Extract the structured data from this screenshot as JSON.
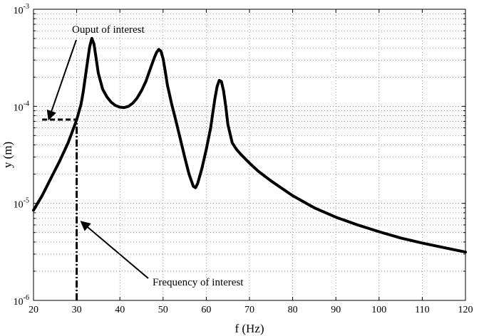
{
  "chart_data": {
    "type": "line",
    "title": "",
    "xlabel": "f (Hz)",
    "ylabel": "y (m)",
    "xlim": [
      20,
      120
    ],
    "ylim": [
      1e-06,
      0.001
    ],
    "yscale": "log",
    "grid": true,
    "x_ticks": [
      20,
      30,
      40,
      50,
      60,
      70,
      80,
      90,
      100,
      110,
      120
    ],
    "x_tick_labels": [
      "20",
      "30",
      "40",
      "50",
      "60",
      "70",
      "80",
      "90",
      "100",
      "110",
      "120"
    ],
    "y_ticks": [
      {
        "value": 1e-06,
        "base": "10",
        "exp": "-6"
      },
      {
        "value": 1e-05,
        "base": "10",
        "exp": "-5"
      },
      {
        "value": 0.0001,
        "base": "10",
        "exp": "-4"
      },
      {
        "value": 0.001,
        "base": "10",
        "exp": "-3"
      }
    ],
    "series": [
      {
        "x": [
          20,
          22,
          24,
          26,
          28,
          29,
          30,
          31,
          31.5,
          32,
          32.5,
          33,
          33.5,
          34,
          34.5,
          35,
          36,
          37,
          38,
          39,
          40,
          41,
          42,
          43,
          44,
          45,
          46,
          47,
          48,
          48.5,
          49,
          49.5,
          50,
          50.5,
          51,
          52,
          53,
          54,
          55,
          56,
          57,
          57.5,
          58,
          59,
          60,
          61,
          61.5,
          62,
          62.5,
          63,
          63.5,
          64,
          64.5,
          65,
          66,
          67,
          68,
          70,
          72,
          75,
          80,
          85,
          90,
          95,
          100,
          105,
          110,
          115,
          120
        ],
        "y": [
          8.5e-06,
          1.2e-05,
          1.8e-05,
          2.7e-05,
          4.2e-05,
          5.5e-05,
          7.3e-05,
          0.000105,
          0.00014,
          0.0002,
          0.00029,
          0.00041,
          0.0005,
          0.00044,
          0.00031,
          0.00022,
          0.00015,
          0.000125,
          0.00011,
          0.000102,
          9.8e-05,
          9.7e-05,
          0.0001,
          0.000108,
          0.000122,
          0.000145,
          0.00018,
          0.00024,
          0.00032,
          0.00036,
          0.000385,
          0.00037,
          0.00031,
          0.00023,
          0.000165,
          0.000105,
          7e-05,
          4.6e-05,
          3e-05,
          2e-05,
          1.5e-05,
          1.45e-05,
          1.6e-05,
          2.3e-05,
          3.6e-05,
          6e-05,
          8.5e-05,
          0.00012,
          0.00016,
          0.000185,
          0.00018,
          0.000145,
          0.0001,
          6.5e-05,
          4.2e-05,
          3.6e-05,
          3.2e-05,
          2.6e-05,
          2.15e-05,
          1.7e-05,
          1.2e-05,
          9e-06,
          7.2e-06,
          6e-06,
          5.1e-06,
          4.4e-06,
          3.9e-06,
          3.5e-06,
          3.15e-06
        ]
      }
    ],
    "markers": {
      "output_of_interest": {
        "y": 7.3e-05,
        "x_from": 22,
        "x_to": 30
      },
      "frequency_of_interest": {
        "x": 30,
        "y_from": 1e-06,
        "y_to": 7.3e-05
      }
    },
    "annotations": [
      {
        "text": "Ouput of interest",
        "arrow_to": {
          "x": 23.5,
          "y": 7.3e-05
        }
      },
      {
        "text": "Frequency of interest",
        "arrow_to": {
          "x": 31,
          "y": 6.5e-06
        }
      }
    ]
  }
}
